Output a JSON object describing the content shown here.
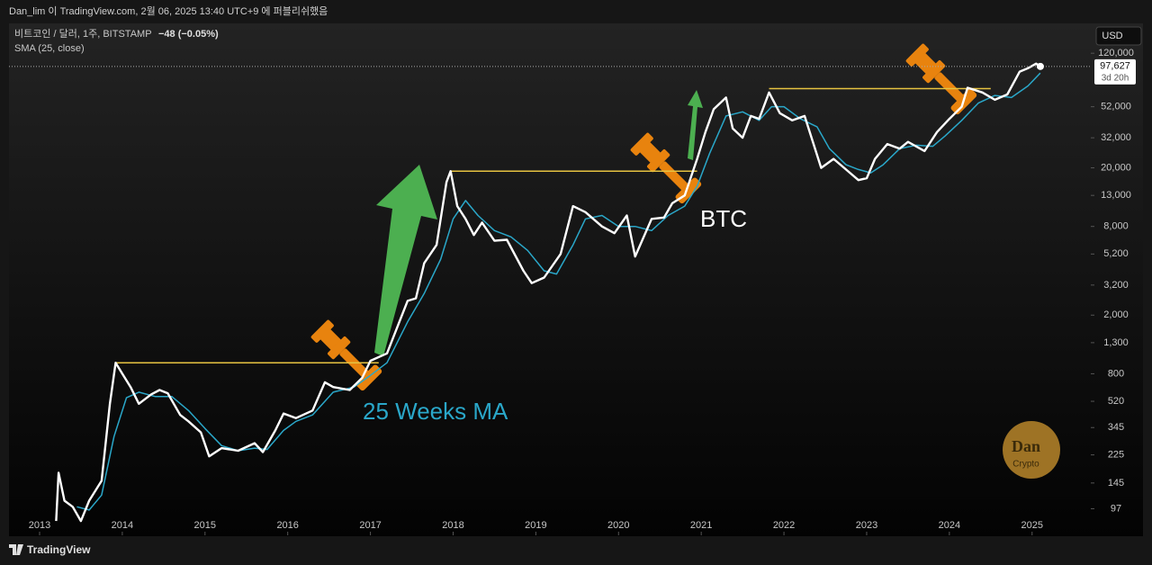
{
  "header": {
    "publisher": "Dan_lim 이 TradingView.com, 2월 06, 2025 13:40 UTC+9 에 퍼블리쉬했음",
    "currency": "USD",
    "brand": "TradingView"
  },
  "chart_data": {
    "type": "line",
    "title": "비트코인 / 달러, 1주, BITSTAMP",
    "change": "−48 (−0.05%)",
    "indicator": "SMA (25, close)",
    "annotations": [
      "BTC",
      "25 Weeks MA"
    ],
    "watermark": [
      "Dan",
      "Crypto"
    ],
    "log_scale": true,
    "xlim": [
      2012.63,
      2025.71
    ],
    "ylim": [
      64,
      186000
    ],
    "xticks": [
      2013,
      2014,
      2015,
      2016,
      2017,
      2018,
      2019,
      2020,
      2021,
      2022,
      2023,
      2024,
      2025
    ],
    "yticks": [
      {
        "value": 120000,
        "label": "120,000"
      },
      {
        "value": 52000,
        "label": "52,000"
      },
      {
        "value": 32000,
        "label": "32,000"
      },
      {
        "value": 20000,
        "label": "20,000"
      },
      {
        "value": 13000,
        "label": "13,000"
      },
      {
        "value": 8000,
        "label": "8,000"
      },
      {
        "value": 5200,
        "label": "5,200"
      },
      {
        "value": 3200,
        "label": "3,200"
      },
      {
        "value": 2000,
        "label": "2,000"
      },
      {
        "value": 1300,
        "label": "1,300"
      },
      800,
      520,
      345,
      225,
      145,
      97
    ],
    "last_value_label": "97,627",
    "countdown": "3d 20h",
    "reference_lines": [
      {
        "y": 950,
        "x": [
          2013.92,
          2017.1
        ]
      },
      {
        "y": 19000,
        "x": [
          2017.97,
          2020.95
        ]
      },
      {
        "y": 69000,
        "x": [
          2021.82,
          2024.5
        ]
      }
    ],
    "series": [
      {
        "name": "BTC",
        "color": "#ffffff",
        "x": [
          2013.2,
          2013.23,
          2013.3,
          2013.4,
          2013.5,
          2013.6,
          2013.75,
          2013.85,
          2013.92,
          2014.0,
          2014.1,
          2014.2,
          2014.35,
          2014.45,
          2014.55,
          2014.7,
          2014.8,
          2014.95,
          2015.05,
          2015.2,
          2015.4,
          2015.6,
          2015.7,
          2015.85,
          2015.95,
          2016.1,
          2016.3,
          2016.45,
          2016.55,
          2016.75,
          2016.9,
          2017.0,
          2017.2,
          2017.35,
          2017.45,
          2017.55,
          2017.65,
          2017.8,
          2017.92,
          2017.97,
          2018.05,
          2018.15,
          2018.25,
          2018.35,
          2018.5,
          2018.65,
          2018.85,
          2018.95,
          2019.1,
          2019.3,
          2019.45,
          2019.6,
          2019.8,
          2019.95,
          2020.1,
          2020.2,
          2020.4,
          2020.55,
          2020.65,
          2020.8,
          2020.95,
          2021.05,
          2021.15,
          2021.3,
          2021.38,
          2021.5,
          2021.6,
          2021.7,
          2021.82,
          2021.95,
          2022.1,
          2022.25,
          2022.35,
          2022.45,
          2022.6,
          2022.75,
          2022.9,
          2023.0,
          2023.1,
          2023.25,
          2023.4,
          2023.5,
          2023.7,
          2023.85,
          2024.0,
          2024.15,
          2024.22,
          2024.4,
          2024.55,
          2024.7,
          2024.85,
          2024.95,
          2025.05,
          2025.1
        ],
        "values": [
          80,
          170,
          110,
          100,
          80,
          110,
          150,
          500,
          950,
          800,
          650,
          500,
          580,
          620,
          590,
          420,
          380,
          320,
          220,
          250,
          240,
          270,
          235,
          330,
          430,
          400,
          450,
          700,
          650,
          620,
          750,
          980,
          1100,
          1800,
          2500,
          2600,
          4500,
          6000,
          16000,
          19000,
          11000,
          9000,
          7000,
          8500,
          6400,
          6500,
          4000,
          3300,
          3600,
          5200,
          11000,
          10000,
          8000,
          7200,
          9500,
          5000,
          9000,
          9200,
          11500,
          13000,
          23000,
          35000,
          50000,
          60000,
          37000,
          32000,
          45000,
          43000,
          65000,
          47000,
          42000,
          45000,
          30000,
          20000,
          23000,
          19500,
          16500,
          17000,
          23000,
          29000,
          27000,
          30000,
          26000,
          35000,
          43000,
          52000,
          70000,
          65000,
          58000,
          63000,
          90000,
          95000,
          102000,
          97627
        ]
      },
      {
        "name": "SMA (25, close)",
        "color": "#2aa7c9",
        "x": [
          2013.45,
          2013.6,
          2013.75,
          2013.9,
          2014.05,
          2014.2,
          2014.4,
          2014.6,
          2014.8,
          2015.0,
          2015.2,
          2015.4,
          2015.6,
          2015.75,
          2015.95,
          2016.1,
          2016.3,
          2016.55,
          2016.8,
          2017.0,
          2017.2,
          2017.45,
          2017.65,
          2017.85,
          2018.0,
          2018.15,
          2018.3,
          2018.5,
          2018.7,
          2018.9,
          2019.1,
          2019.25,
          2019.45,
          2019.6,
          2019.8,
          2020.0,
          2020.2,
          2020.4,
          2020.6,
          2020.8,
          2020.95,
          2021.1,
          2021.3,
          2021.5,
          2021.7,
          2021.85,
          2022.0,
          2022.2,
          2022.4,
          2022.55,
          2022.75,
          2022.9,
          2023.05,
          2023.2,
          2023.4,
          2023.6,
          2023.8,
          2023.95,
          2024.15,
          2024.35,
          2024.55,
          2024.75,
          2024.95,
          2025.1
        ],
        "values": [
          100,
          95,
          120,
          300,
          550,
          600,
          560,
          560,
          450,
          340,
          260,
          240,
          250,
          245,
          330,
          380,
          420,
          600,
          650,
          780,
          950,
          1800,
          2800,
          4800,
          9000,
          12000,
          9500,
          7500,
          6800,
          5500,
          4000,
          3800,
          6000,
          9000,
          9500,
          8000,
          8000,
          7500,
          9500,
          11000,
          15000,
          25000,
          45000,
          48000,
          42000,
          52000,
          52000,
          43000,
          38000,
          27000,
          21000,
          19500,
          18500,
          21000,
          27000,
          28500,
          28000,
          33000,
          42000,
          55000,
          62000,
          60000,
          72000,
          88000
        ]
      }
    ]
  }
}
